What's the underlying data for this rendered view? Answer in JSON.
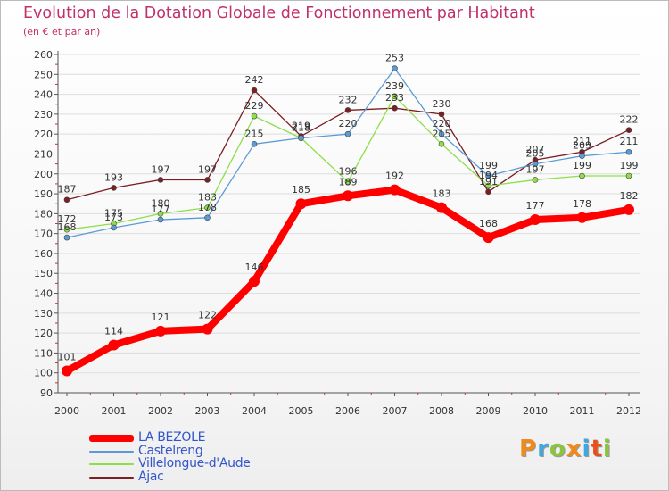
{
  "title": "Evolution de la Dotation Globale de Fonctionnement par Habitant",
  "subtitle": "(en € et par an)",
  "logo": {
    "text": "Proxiti",
    "colors": [
      "#f08a1c",
      "#3fa9dd",
      "#8bc53f",
      "#f08a1c",
      "#3fa9dd",
      "#e94e1b",
      "#8bc53f"
    ]
  },
  "chart_data": {
    "type": "line",
    "title": "Evolution de la Dotation Globale de Fonctionnement par Habitant",
    "subtitle": "(en € et par an)",
    "x": [
      "2000",
      "2001",
      "2002",
      "2003",
      "2004",
      "2005",
      "2006",
      "2007",
      "2008",
      "2009",
      "2010",
      "2011",
      "2012"
    ],
    "ylim": [
      90,
      260
    ],
    "yticks": [
      90,
      100,
      110,
      120,
      130,
      140,
      150,
      160,
      170,
      180,
      190,
      200,
      210,
      220,
      230,
      240,
      250,
      260
    ],
    "grid": "horizontal",
    "legend": "bottom-left",
    "series": [
      {
        "name": "Ajac",
        "color": "#7a1f24",
        "values": [
          187,
          193,
          197,
          197,
          242,
          219,
          232,
          233,
          230,
          191,
          207,
          211,
          222
        ]
      },
      {
        "name": "Villelongue-d'Aude",
        "color": "#8ede4a",
        "values": [
          172,
          175,
          180,
          183,
          229,
          218,
          196,
          239,
          215,
          194,
          197,
          199,
          199
        ]
      },
      {
        "name": "Castelreng",
        "color": "#5b9bd5",
        "values": [
          168,
          173,
          177,
          178,
          215,
          218,
          220,
          253,
          220,
          199,
          205,
          209,
          211
        ]
      },
      {
        "name": "LA BEZOLE",
        "color": "#ff0000",
        "values": [
          101,
          114,
          121,
          122,
          146,
          185,
          189,
          192,
          183,
          168,
          177,
          178,
          182
        ]
      }
    ]
  }
}
